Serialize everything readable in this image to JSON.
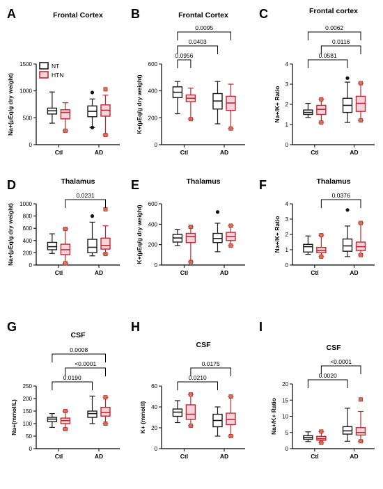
{
  "colors": {
    "NT": "#1a1a1a",
    "HTN": "#c0282e",
    "HTN_fill": "#f4d3dc",
    "HTN_marker": "#c77a55"
  },
  "legend": {
    "NT": "NT",
    "HTN": "HTN"
  },
  "chart_data": [
    {
      "type": "box",
      "letter": "A",
      "title": "Frontal Cortex",
      "ylabel": "Na+(μEq/g dry weight)",
      "categories": [
        "Ctl",
        "AD"
      ],
      "ylim": [
        0,
        1500
      ],
      "yticks": [
        0,
        500,
        1000,
        1500
      ],
      "boxes": [
        {
          "group": "Ctl",
          "series": "NT",
          "min": 400,
          "q1": 570,
          "median": 630,
          "q3": 680,
          "max": 980,
          "outliers": []
        },
        {
          "group": "Ctl",
          "series": "HTN",
          "min": 260,
          "q1": 480,
          "median": 600,
          "q3": 650,
          "max": 780,
          "outliers": [
            260
          ]
        },
        {
          "group": "AD",
          "series": "NT",
          "min": 320,
          "q1": 520,
          "median": 620,
          "q3": 720,
          "max": 850,
          "outliers": [
            970,
            320
          ]
        },
        {
          "group": "AD",
          "series": "HTN",
          "min": 180,
          "q1": 530,
          "median": 640,
          "q3": 740,
          "max": 920,
          "outliers": [
            1030,
            180
          ]
        }
      ],
      "pvalues": []
    },
    {
      "type": "box",
      "letter": "B",
      "title": "Frontal Cortex",
      "ylabel": "K+(μEq/g dry weight)",
      "categories": [
        "Ctl",
        "AD"
      ],
      "ylim": [
        0,
        600
      ],
      "yticks": [
        0,
        200,
        400,
        600
      ],
      "boxes": [
        {
          "group": "Ctl",
          "series": "NT",
          "min": 230,
          "q1": 350,
          "median": 390,
          "q3": 430,
          "max": 470,
          "outliers": []
        },
        {
          "group": "Ctl",
          "series": "HTN",
          "min": 190,
          "q1": 320,
          "median": 345,
          "q3": 370,
          "max": 420,
          "outliers": [
            190
          ]
        },
        {
          "group": "AD",
          "series": "NT",
          "min": 155,
          "q1": 265,
          "median": 325,
          "q3": 380,
          "max": 470,
          "outliers": []
        },
        {
          "group": "AD",
          "series": "HTN",
          "min": 120,
          "q1": 255,
          "median": 310,
          "q3": 360,
          "max": 450,
          "outliers": [
            120
          ]
        }
      ],
      "pvalues": [
        {
          "label": "0.0956",
          "from": [
            0,
            0
          ],
          "to": [
            0,
            1
          ],
          "level": 1
        },
        {
          "label": "0.0403",
          "from": [
            0,
            0
          ],
          "to": [
            1,
            0
          ],
          "level": 2
        },
        {
          "label": "0.0095",
          "from": [
            0,
            0
          ],
          "to": [
            1,
            1
          ],
          "level": 3
        }
      ]
    },
    {
      "type": "box",
      "letter": "C",
      "title": "Frontal cortex",
      "ylabel": "Na+/K+ Ratio",
      "categories": [
        "Ctl",
        "AD"
      ],
      "ylim": [
        0,
        4
      ],
      "yticks": [
        0,
        1,
        2,
        3,
        4
      ],
      "boxes": [
        {
          "group": "Ctl",
          "series": "NT",
          "min": 1.35,
          "q1": 1.5,
          "median": 1.6,
          "q3": 1.72,
          "max": 2.05,
          "outliers": []
        },
        {
          "group": "Ctl",
          "series": "HTN",
          "min": 1.1,
          "q1": 1.5,
          "median": 1.75,
          "q3": 1.95,
          "max": 2.25,
          "outliers": [
            2.25,
            1.1
          ]
        },
        {
          "group": "AD",
          "series": "NT",
          "min": 1.1,
          "q1": 1.6,
          "median": 1.95,
          "q3": 2.3,
          "max": 3.1,
          "outliers": [
            3.3
          ]
        },
        {
          "group": "AD",
          "series": "HTN",
          "min": 1.2,
          "q1": 1.65,
          "median": 2.05,
          "q3": 2.4,
          "max": 3.05,
          "outliers": [
            3.05,
            1.2
          ]
        }
      ],
      "pvalues": [
        {
          "label": "0.0581",
          "from": [
            0,
            0
          ],
          "to": [
            1,
            0
          ],
          "level": 1
        },
        {
          "label": "0.0116",
          "from": [
            0,
            1
          ],
          "to": [
            1,
            1
          ],
          "level": 2
        },
        {
          "label": "0.0062",
          "from": [
            0,
            0
          ],
          "to": [
            1,
            1
          ],
          "level": 3
        }
      ]
    },
    {
      "type": "box",
      "letter": "D",
      "title": "Thalamus",
      "ylabel": "Na+(μEq/g dry weight)",
      "categories": [
        "Ctl",
        "AD"
      ],
      "ylim": [
        0,
        1000
      ],
      "yticks": [
        0,
        200,
        400,
        600,
        800,
        1000
      ],
      "boxes": [
        {
          "group": "Ctl",
          "series": "NT",
          "min": 190,
          "q1": 250,
          "median": 300,
          "q3": 370,
          "max": 510,
          "outliers": []
        },
        {
          "group": "Ctl",
          "series": "HTN",
          "min": 30,
          "q1": 170,
          "median": 250,
          "q3": 340,
          "max": 590,
          "outliers": [
            590,
            30
          ]
        },
        {
          "group": "AD",
          "series": "NT",
          "min": 150,
          "q1": 200,
          "median": 290,
          "q3": 420,
          "max": 700,
          "outliers": [
            800
          ]
        },
        {
          "group": "AD",
          "series": "HTN",
          "min": 180,
          "q1": 260,
          "median": 320,
          "q3": 440,
          "max": 640,
          "outliers": [
            910,
            180
          ]
        }
      ],
      "pvalues": [
        {
          "label": "0.0231",
          "from": [
            0,
            1
          ],
          "to": [
            1,
            1
          ],
          "level": 1
        }
      ]
    },
    {
      "type": "box",
      "letter": "E",
      "title": "Thalamus",
      "ylabel": "K+(μEq/g dry weight)",
      "categories": [
        "Ctl",
        "AD"
      ],
      "ylim": [
        0,
        600
      ],
      "yticks": [
        0,
        200,
        400,
        600
      ],
      "boxes": [
        {
          "group": "Ctl",
          "series": "NT",
          "min": 190,
          "q1": 225,
          "median": 265,
          "q3": 300,
          "max": 350,
          "outliers": []
        },
        {
          "group": "Ctl",
          "series": "HTN",
          "min": 30,
          "q1": 220,
          "median": 280,
          "q3": 310,
          "max": 375,
          "outliers": [
            375,
            30
          ]
        },
        {
          "group": "AD",
          "series": "NT",
          "min": 130,
          "q1": 220,
          "median": 260,
          "q3": 310,
          "max": 410,
          "outliers": [
            520
          ]
        },
        {
          "group": "AD",
          "series": "HTN",
          "min": 190,
          "q1": 240,
          "median": 280,
          "q3": 320,
          "max": 385,
          "outliers": [
            385,
            190
          ]
        }
      ],
      "pvalues": []
    },
    {
      "type": "box",
      "letter": "F",
      "title": "Thalamus",
      "ylabel": "Na+/K+ Ratio",
      "categories": [
        "Ctl",
        "AD"
      ],
      "ylim": [
        0,
        4
      ],
      "yticks": [
        0,
        1,
        2,
        3,
        4
      ],
      "boxes": [
        {
          "group": "Ctl",
          "series": "NT",
          "min": 0.7,
          "q1": 0.85,
          "median": 1.2,
          "q3": 1.35,
          "max": 1.9,
          "outliers": []
        },
        {
          "group": "Ctl",
          "series": "HTN",
          "min": 0.55,
          "q1": 0.8,
          "median": 0.95,
          "q3": 1.15,
          "max": 1.95,
          "outliers": [
            1.95,
            0.55
          ]
        },
        {
          "group": "AD",
          "series": "NT",
          "min": 0.55,
          "q1": 0.9,
          "median": 1.25,
          "q3": 1.7,
          "max": 2.55,
          "outliers": [
            3.6
          ]
        },
        {
          "group": "AD",
          "series": "HTN",
          "min": 0.65,
          "q1": 0.95,
          "median": 1.2,
          "q3": 1.5,
          "max": 2.75,
          "outliers": [
            2.75,
            0.65
          ]
        }
      ],
      "pvalues": [
        {
          "label": "0.0376",
          "from": [
            0,
            1
          ],
          "to": [
            1,
            1
          ],
          "level": 1
        }
      ]
    },
    {
      "type": "box",
      "letter": "G",
      "title": "CSF",
      "ylabel": "Na+(mmol/L)",
      "categories": [
        "Ctl",
        "AD"
      ],
      "ylim": [
        0,
        250
      ],
      "yticks": [
        0,
        50,
        100,
        150,
        200,
        250
      ],
      "boxes": [
        {
          "group": "Ctl",
          "series": "NT",
          "min": 85,
          "q1": 108,
          "median": 118,
          "q3": 125,
          "max": 140,
          "outliers": []
        },
        {
          "group": "Ctl",
          "series": "HTN",
          "min": 78,
          "q1": 100,
          "median": 112,
          "q3": 122,
          "max": 150,
          "outliers": [
            150,
            78
          ]
        },
        {
          "group": "AD",
          "series": "NT",
          "min": 100,
          "q1": 125,
          "median": 140,
          "q3": 150,
          "max": 210,
          "outliers": []
        },
        {
          "group": "AD",
          "series": "HTN",
          "min": 100,
          "q1": 130,
          "median": 145,
          "q3": 165,
          "max": 205,
          "outliers": [
            205,
            100
          ]
        }
      ],
      "pvalues": [
        {
          "label": "0.0190",
          "from": [
            0,
            0
          ],
          "to": [
            1,
            0
          ],
          "level": 1
        },
        {
          "label": "<0.0001",
          "from": [
            0,
            1
          ],
          "to": [
            1,
            1
          ],
          "level": 2
        },
        {
          "label": "0.0008",
          "from": [
            0,
            0
          ],
          "to": [
            1,
            1
          ],
          "level": 3
        }
      ]
    },
    {
      "type": "box",
      "letter": "H",
      "title": "CSF",
      "ylabel": "K+ (mmol/l)",
      "categories": [
        "Ctl",
        "AD"
      ],
      "ylim": [
        0,
        60
      ],
      "yticks": [
        0,
        20,
        40,
        60
      ],
      "boxes": [
        {
          "group": "Ctl",
          "series": "NT",
          "min": 25,
          "q1": 31,
          "median": 35,
          "q3": 38,
          "max": 46,
          "outliers": []
        },
        {
          "group": "Ctl",
          "series": "HTN",
          "min": 22,
          "q1": 28,
          "median": 33,
          "q3": 42,
          "max": 52,
          "outliers": [
            52,
            22
          ]
        },
        {
          "group": "AD",
          "series": "NT",
          "min": 12,
          "q1": 21,
          "median": 27,
          "q3": 33,
          "max": 40,
          "outliers": []
        },
        {
          "group": "AD",
          "series": "HTN",
          "min": 12,
          "q1": 23,
          "median": 28,
          "q3": 34,
          "max": 50,
          "outliers": [
            50,
            12
          ]
        }
      ],
      "pvalues": [
        {
          "label": "0.0210",
          "from": [
            0,
            0
          ],
          "to": [
            1,
            0
          ],
          "level": 1
        },
        {
          "label": "0.0175",
          "from": [
            0,
            1
          ],
          "to": [
            1,
            1
          ],
          "level": 2
        }
      ]
    },
    {
      "type": "box",
      "letter": "I",
      "title": "CSF",
      "ylabel": "Na+/K+ Ratio",
      "categories": [
        "Ctl",
        "AD"
      ],
      "ylim": [
        0,
        20
      ],
      "yticks": [
        0,
        5,
        10,
        15,
        20
      ],
      "boxes": [
        {
          "group": "Ctl",
          "series": "NT",
          "min": 2.2,
          "q1": 2.9,
          "median": 3.4,
          "q3": 4.0,
          "max": 5.2,
          "outliers": []
        },
        {
          "group": "Ctl",
          "series": "HTN",
          "min": 1.8,
          "q1": 2.6,
          "median": 3.1,
          "q3": 3.8,
          "max": 5.3,
          "outliers": [
            5.3,
            1.8
          ]
        },
        {
          "group": "AD",
          "series": "NT",
          "min": 2.3,
          "q1": 4.5,
          "median": 5.5,
          "q3": 6.8,
          "max": 12.5,
          "outliers": []
        },
        {
          "group": "AD",
          "series": "HTN",
          "min": 2.3,
          "q1": 4.2,
          "median": 5.0,
          "q3": 6.5,
          "max": 11.5,
          "outliers": [
            15.2,
            2.3
          ]
        }
      ],
      "pvalues": [
        {
          "label": "0.0020",
          "from": [
            0,
            0
          ],
          "to": [
            1,
            0
          ],
          "level": 1
        },
        {
          "label": "<0.0001",
          "from": [
            0,
            1
          ],
          "to": [
            1,
            1
          ],
          "level": 2
        }
      ]
    }
  ]
}
